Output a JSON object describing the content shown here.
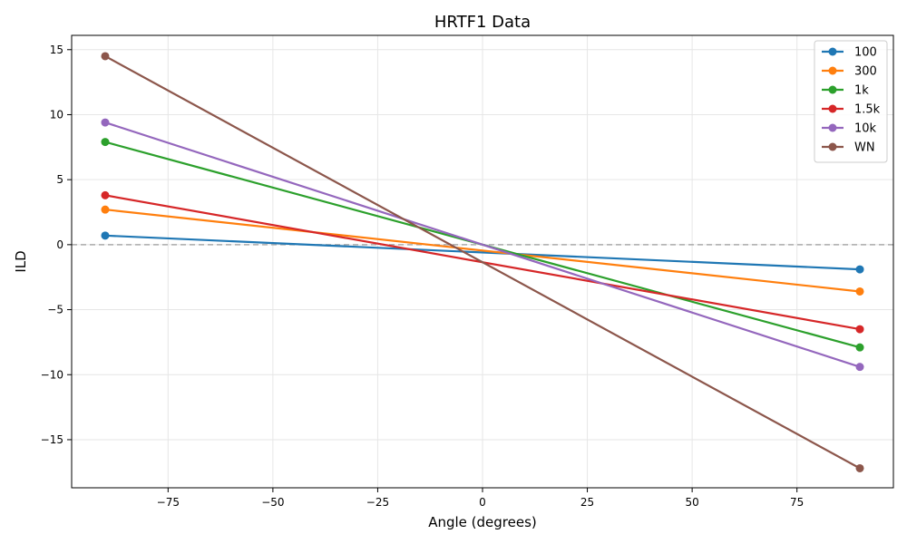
{
  "chart_data": {
    "type": "line",
    "title": "HRTF1 Data",
    "xlabel": "Angle (degrees)",
    "ylabel": "ILD",
    "xlim": [
      -98,
      98
    ],
    "ylim": [
      -18.7,
      16.1
    ],
    "xticks": [
      -75,
      -50,
      -25,
      0,
      25,
      50,
      75
    ],
    "yticks": [
      -15,
      -10,
      -5,
      0,
      5,
      10,
      15
    ],
    "xtick_labels": [
      "−75",
      "−50",
      "−25",
      "0",
      "25",
      "50",
      "75"
    ],
    "ytick_labels": [
      "−15",
      "−10",
      "−5",
      "0",
      "5",
      "10",
      "15"
    ],
    "grid": true,
    "reference_line": {
      "y": 0,
      "style": "dashed",
      "color": "#aaaaaa"
    },
    "legend": {
      "position": "top-right"
    },
    "x": [
      -90,
      90
    ],
    "series": [
      {
        "name": "100",
        "color": "#1f77b4",
        "values": [
          0.7,
          -1.9
        ]
      },
      {
        "name": "300",
        "color": "#ff7f0e",
        "values": [
          2.7,
          -3.6
        ]
      },
      {
        "name": "1k",
        "color": "#2ca02c",
        "values": [
          7.9,
          -7.9
        ]
      },
      {
        "name": "1.5k",
        "color": "#d62728",
        "values": [
          3.8,
          -6.5
        ]
      },
      {
        "name": "10k",
        "color": "#9467bd",
        "values": [
          9.4,
          -9.4
        ]
      },
      {
        "name": "WN",
        "color": "#8c564b",
        "values": [
          14.5,
          -17.2
        ]
      }
    ]
  }
}
